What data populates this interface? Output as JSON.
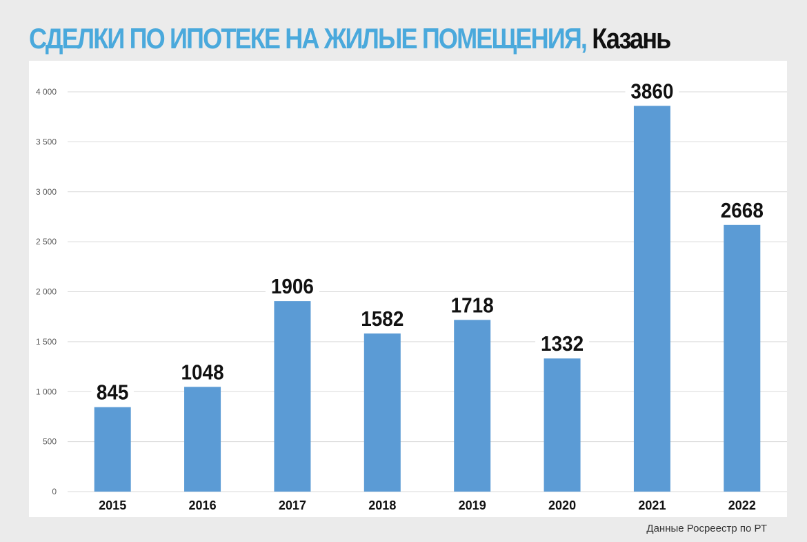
{
  "title": {
    "main": "СДЕЛКИ ПО ИПОТЕКЕ НА ЖИЛЫЕ ПОМЕЩЕНИЯ,",
    "city": "Казань"
  },
  "source_note": "Данные Росреестр по РТ",
  "colors": {
    "bar": "#5b9bd5",
    "title_accent": "#4aa9dc",
    "grid": "#d9d9d9"
  },
  "chart_data": {
    "type": "bar",
    "categories": [
      "2015",
      "2016",
      "2017",
      "2018",
      "2019",
      "2020",
      "2021",
      "2022"
    ],
    "values": [
      845,
      1048,
      1906,
      1582,
      1718,
      1332,
      3860,
      2668
    ],
    "data_labels": [
      "845",
      "1048",
      "1906",
      "1582",
      "1718",
      "1332",
      "3860",
      "2668"
    ],
    "yticks": [
      0,
      500,
      1000,
      1500,
      2000,
      2500,
      3000,
      3500,
      4000
    ],
    "ytick_labels": [
      "0",
      "500",
      "1 000",
      "1 500",
      "2 000",
      "2 500",
      "3 000",
      "3 500",
      "4 000"
    ],
    "ylim": [
      0,
      4000
    ],
    "title": "СДЕЛКИ ПО ИПОТЕКЕ НА ЖИЛЫЕ ПОМЕЩЕНИЯ, Казань",
    "xlabel": "",
    "ylabel": "",
    "grid": true,
    "legend": "none"
  }
}
